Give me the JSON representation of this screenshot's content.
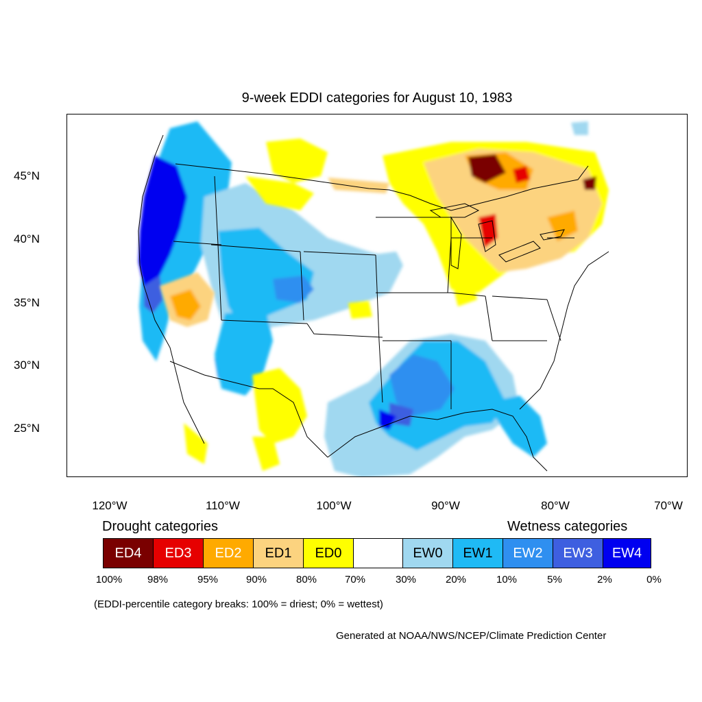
{
  "title": "9-week EDDI categories for August 10, 1983",
  "axes": {
    "lat_labels": [
      "45°N",
      "40°N",
      "35°N",
      "30°N",
      "25°N"
    ],
    "lon_labels": [
      "120°W",
      "110°W",
      "100°W",
      "90°W",
      "80°W",
      "70°W"
    ]
  },
  "legend": {
    "drought_heading": "Drought categories",
    "wetness_heading": "Wetness categories",
    "categories": [
      {
        "label": "ED4",
        "color": "#7a0000",
        "text_color": "#ffffff"
      },
      {
        "label": "ED3",
        "color": "#e60000",
        "text_color": "#ffffff"
      },
      {
        "label": "ED2",
        "color": "#ffaa00",
        "text_color": "#ffffff"
      },
      {
        "label": "ED1",
        "color": "#fcd37f",
        "text_color": "#000000"
      },
      {
        "label": "ED0",
        "color": "#ffff00",
        "text_color": "#000000"
      },
      {
        "label": "",
        "color": "#ffffff",
        "text_color": "#000000"
      },
      {
        "label": "EW0",
        "color": "#a0d8f0",
        "text_color": "#000000"
      },
      {
        "label": "EW1",
        "color": "#1fbaf5",
        "text_color": "#000000"
      },
      {
        "label": "EW2",
        "color": "#2f8ff0",
        "text_color": "#ffffff"
      },
      {
        "label": "EW3",
        "color": "#3e5fe0",
        "text_color": "#ffffff"
      },
      {
        "label": "EW4",
        "color": "#0000f0",
        "text_color": "#ffffff"
      }
    ],
    "percentiles": [
      "100%",
      "98%",
      "95%",
      "90%",
      "80%",
      "70%",
      "30%",
      "20%",
      "10%",
      "5%",
      "2%",
      "0%"
    ]
  },
  "breaks_note": "(EDDI-percentile category breaks: 100% = driest; 0% = wettest)",
  "credit": "Generated at NOAA/NWS/NCEP/Climate Prediction Center"
}
